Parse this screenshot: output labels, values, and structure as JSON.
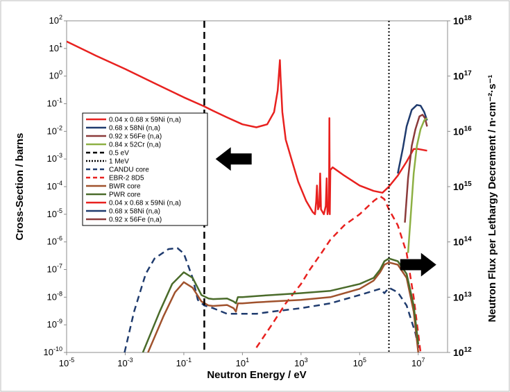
{
  "chart_data": {
    "type": "line",
    "xlabel": "Neutron Energy / eV",
    "ylabel_left": "Cross-Section / barns",
    "ylabel_right": "Neutron Flux per Lethargy Decrement / n·cm⁻²·s⁻¹",
    "x_scale": "log",
    "x_range": [
      1e-05,
      100000000.0
    ],
    "y_left_scale": "log",
    "y_left_range": [
      1e-10,
      100
    ],
    "y_right_scale": "log",
    "y_right_range": [
      1000000000000.0,
      1e+18
    ],
    "x_ticks": [
      {
        "base": "10",
        "exp": "-5"
      },
      {
        "base": "10",
        "exp": "-3"
      },
      {
        "base": "10",
        "exp": "-1"
      },
      {
        "base": "10",
        "exp": "1"
      },
      {
        "base": "10",
        "exp": "3"
      },
      {
        "base": "10",
        "exp": "5"
      },
      {
        "base": "10",
        "exp": "7"
      }
    ],
    "y_left_ticks": [
      {
        "base": "10",
        "exp": "2"
      },
      {
        "base": "10",
        "exp": "1"
      },
      {
        "base": "10",
        "exp": "0"
      },
      {
        "base": "10",
        "exp": "-1"
      },
      {
        "base": "10",
        "exp": "-2"
      },
      {
        "base": "10",
        "exp": "-3"
      },
      {
        "base": "10",
        "exp": "-4"
      },
      {
        "base": "10",
        "exp": "-5"
      },
      {
        "base": "10",
        "exp": "-6"
      },
      {
        "base": "10",
        "exp": "-7"
      },
      {
        "base": "10",
        "exp": "-8"
      },
      {
        "base": "10",
        "exp": "-9"
      },
      {
        "base": "10",
        "exp": "-10"
      }
    ],
    "y_right_ticks": [
      {
        "base": "10",
        "exp": "18"
      },
      {
        "base": "10",
        "exp": "17"
      },
      {
        "base": "10",
        "exp": "16"
      },
      {
        "base": "10",
        "exp": "15"
      },
      {
        "base": "10",
        "exp": "14"
      },
      {
        "base": "10",
        "exp": "13"
      },
      {
        "base": "10",
        "exp": "12"
      }
    ],
    "grid": false,
    "legend_position": "left-middle",
    "legend": [
      {
        "label": "0.04 x 0.68 x 59Ni (n,a)",
        "color": "#e8211f",
        "dash": "solid"
      },
      {
        "label": "0.68 x 58Ni (n,a)",
        "color": "#1f3b6e",
        "dash": "solid"
      },
      {
        "label": "0.92 x  56Fe (n,a)",
        "color": "#8b3a3a",
        "dash": "solid"
      },
      {
        "label": "0.84 x 52Cr (n,a)",
        "color": "#8db043",
        "dash": "solid"
      },
      {
        "label": "0.5 eV",
        "color": "#000000",
        "dash": "longdash"
      },
      {
        "label": "1 MeV",
        "color": "#000000",
        "dash": "dotted"
      },
      {
        "label": "CANDU core",
        "color": "#1f3b6e",
        "dash": "dashed"
      },
      {
        "label": "EBR-2 8D5",
        "color": "#e8211f",
        "dash": "dashed"
      },
      {
        "label": "BWR core",
        "color": "#a0522d",
        "dash": "solid"
      },
      {
        "label": "PWR core",
        "color": "#4a6b2a",
        "dash": "solid"
      },
      {
        "label": "0.04 x 0.68 x 59Ni (n,a)",
        "color": "#e8211f",
        "dash": "solid"
      },
      {
        "label": "0.68 x 58Ni (n,a)",
        "color": "#1f3b6e",
        "dash": "solid"
      },
      {
        "label": "0.92 x  56Fe (n,a)",
        "color": "#8b3a3a",
        "dash": "solid"
      }
    ],
    "vertical_lines": [
      {
        "x": 0.5,
        "style": "longdash"
      },
      {
        "x": 1000000,
        "style": "dotted"
      }
    ],
    "arrows": [
      {
        "direction": "left",
        "x": 5,
        "y_left": 0.001
      },
      {
        "direction": "right",
        "x": 10000000,
        "y_left": 1.5e-07
      }
    ],
    "series": [
      {
        "name": "0.04 x 0.68 x 59Ni (n,a)",
        "axis": "left",
        "color": "#e8211f",
        "dash": "solid",
        "points": [
          [
            1e-05,
            18
          ],
          [
            0.0001,
            5.5
          ],
          [
            0.001,
            1.8
          ],
          [
            0.01,
            0.55
          ],
          [
            0.1,
            0.17
          ],
          [
            0.5,
            0.08
          ],
          [
            1,
            0.055
          ],
          [
            3,
            0.032
          ],
          [
            10,
            0.018
          ],
          [
            30,
            0.014
          ],
          [
            70,
            0.018
          ],
          [
            120,
            0.05
          ],
          [
            160,
            0.3
          ],
          [
            190,
            3.8
          ],
          [
            200,
            1
          ],
          [
            230,
            0.05
          ],
          [
            300,
            0.005
          ],
          [
            500,
            0.0008
          ],
          [
            800,
            0.00015
          ],
          [
            1500,
            3e-05
          ],
          [
            2500,
            1.2e-05
          ],
          [
            3000,
            1e-05
          ],
          [
            3300,
            3e-05
          ],
          [
            3500,
            0.00011
          ],
          [
            3800,
            1.5e-05
          ],
          [
            4200,
            2e-05
          ],
          [
            4500,
            0.0003
          ],
          [
            4800,
            1.5e-05
          ],
          [
            6000,
            1e-05
          ],
          [
            7000,
            2e-05
          ],
          [
            7500,
            0.0002
          ],
          [
            8000,
            1e-05
          ],
          [
            9000,
            2e-05
          ],
          [
            9300,
            0.03
          ],
          [
            9600,
            1e-05
          ],
          [
            10000,
            0.0004
          ],
          [
            12000,
            0.0005
          ],
          [
            30000,
            0.00025
          ],
          [
            100000,
            0.00011
          ],
          [
            300000,
            7e-05
          ],
          [
            600000,
            6e-05
          ],
          [
            1000000,
            0.0001
          ],
          [
            2000000,
            0.00025
          ],
          [
            4000000,
            0.0008
          ],
          [
            7000000,
            0.0023
          ],
          [
            10000000,
            0.0023
          ],
          [
            20000000,
            0.002
          ]
        ]
      },
      {
        "name": "0.68 x 58Ni (n,a)",
        "axis": "left",
        "color": "#1f3b6e",
        "dash": "solid",
        "points": [
          [
            2000000,
            0.0003
          ],
          [
            3000000,
            0.0025
          ],
          [
            4000000,
            0.015
          ],
          [
            6000000,
            0.06
          ],
          [
            9000000,
            0.09
          ],
          [
            12000000,
            0.085
          ],
          [
            16000000,
            0.05
          ],
          [
            20000000,
            0.025
          ]
        ]
      },
      {
        "name": "0.92 x  56Fe (n,a)",
        "axis": "left",
        "color": "#8b3a3a",
        "dash": "solid",
        "points": [
          [
            3500000,
            5e-06
          ],
          [
            4500000,
            0.0002
          ],
          [
            6000000,
            0.003
          ],
          [
            8000000,
            0.012
          ],
          [
            11000000,
            0.035
          ],
          [
            14000000,
            0.04
          ],
          [
            17000000,
            0.03
          ],
          [
            20000000,
            0.015
          ]
        ]
      },
      {
        "name": "0.84 x 52Cr (n,a)",
        "axis": "left",
        "color": "#8db043",
        "dash": "solid",
        "points": [
          [
            4500000,
            4e-07
          ],
          [
            5500000,
            8e-06
          ],
          [
            7000000,
            0.0003
          ],
          [
            9000000,
            0.003
          ],
          [
            12000000,
            0.012
          ],
          [
            16000000,
            0.025
          ],
          [
            20000000,
            0.03
          ]
        ]
      },
      {
        "name": "CANDU core",
        "axis": "left",
        "color": "#1f3b6e",
        "dash": "dashed",
        "points": [
          [
            0.00095,
            1e-10
          ],
          [
            0.002,
            3e-09
          ],
          [
            0.005,
            7e-08
          ],
          [
            0.01,
            2.5e-07
          ],
          [
            0.03,
            5.5e-07
          ],
          [
            0.06,
            6e-07
          ],
          [
            0.1,
            3.8e-07
          ],
          [
            0.2,
            5e-08
          ],
          [
            0.3,
            8e-09
          ],
          [
            0.5,
            5e-09
          ],
          [
            1,
            4e-09
          ],
          [
            3,
            2.5e-09
          ],
          [
            10,
            2.5e-09
          ],
          [
            30,
            2.5e-09
          ],
          [
            100,
            3e-09
          ],
          [
            1000,
            4e-09
          ],
          [
            10000,
            6e-09
          ],
          [
            100000,
            1.2e-08
          ],
          [
            500000,
            2e-08
          ],
          [
            700000,
            1.4e-08
          ],
          [
            1000000,
            2.2e-08
          ],
          [
            2000000,
            1.5e-08
          ],
          [
            4000000,
            5e-09
          ],
          [
            8000000,
            5e-10
          ],
          [
            11000000,
            1e-10
          ]
        ]
      },
      {
        "name": "EBR-2 8D5",
        "axis": "left",
        "color": "#e8211f",
        "dash": "dashed",
        "points": [
          [
            30,
            1.5e-10
          ],
          [
            100,
            1e-09
          ],
          [
            300,
            6e-09
          ],
          [
            1000,
            3e-08
          ],
          [
            2000,
            1e-07
          ],
          [
            5000,
            4e-07
          ],
          [
            10000,
            1.2e-06
          ],
          [
            30000,
            4e-06
          ],
          [
            100000,
            1e-05
          ],
          [
            300000,
            3e-05
          ],
          [
            500000,
            4.5e-05
          ],
          [
            700000,
            3.5e-05
          ],
          [
            1000000,
            1.5e-05
          ],
          [
            2000000,
            4e-06
          ],
          [
            4000000,
            4e-07
          ],
          [
            7000000,
            1e-08
          ],
          [
            12000000,
            1e-10
          ]
        ]
      },
      {
        "name": "BWR core",
        "axis": "left",
        "color": "#a0522d",
        "dash": "solid",
        "points": [
          [
            0.006,
            1e-10
          ],
          [
            0.02,
            2e-09
          ],
          [
            0.05,
            1.5e-08
          ],
          [
            0.1,
            3.5e-08
          ],
          [
            0.2,
            2.2e-08
          ],
          [
            0.4,
            7e-09
          ],
          [
            0.7,
            5e-09
          ],
          [
            1,
            4.8e-09
          ],
          [
            3,
            5.2e-09
          ],
          [
            5,
            4e-09
          ],
          [
            6,
            3e-09
          ],
          [
            7,
            6e-09
          ],
          [
            10,
            6e-09
          ],
          [
            30,
            6.5e-09
          ],
          [
            100,
            7e-09
          ],
          [
            1000,
            8e-09
          ],
          [
            10000,
            1e-08
          ],
          [
            100000,
            2e-08
          ],
          [
            300000,
            4e-08
          ],
          [
            500000,
            8e-08
          ],
          [
            700000,
            1.5e-07
          ],
          [
            1000000,
            1.8e-07
          ],
          [
            2000000,
            1.5e-07
          ],
          [
            4000000,
            5e-08
          ],
          [
            7000000,
            3e-09
          ],
          [
            10000000,
            1e-10
          ]
        ]
      },
      {
        "name": "PWR core",
        "axis": "left",
        "color": "#4a6b2a",
        "dash": "solid",
        "points": [
          [
            0.004,
            1e-10
          ],
          [
            0.015,
            3e-09
          ],
          [
            0.04,
            3e-08
          ],
          [
            0.1,
            8e-08
          ],
          [
            0.2,
            5e-08
          ],
          [
            0.4,
            1.2e-08
          ],
          [
            0.7,
            9e-09
          ],
          [
            1,
            8.5e-09
          ],
          [
            3,
            9e-09
          ],
          [
            5,
            7e-09
          ],
          [
            6,
            6e-09
          ],
          [
            7,
            1e-08
          ],
          [
            10,
            1e-08
          ],
          [
            30,
            1.1e-08
          ],
          [
            100,
            1.2e-08
          ],
          [
            1000,
            1.4e-08
          ],
          [
            10000,
            1.7e-08
          ],
          [
            100000,
            3e-08
          ],
          [
            300000,
            5e-08
          ],
          [
            500000,
            1e-07
          ],
          [
            700000,
            2e-07
          ],
          [
            1000000,
            2.5e-07
          ],
          [
            2000000,
            2e-07
          ],
          [
            4000000,
            7e-08
          ],
          [
            7000000,
            5e-09
          ],
          [
            10000000,
            2e-10
          ]
        ]
      }
    ]
  }
}
